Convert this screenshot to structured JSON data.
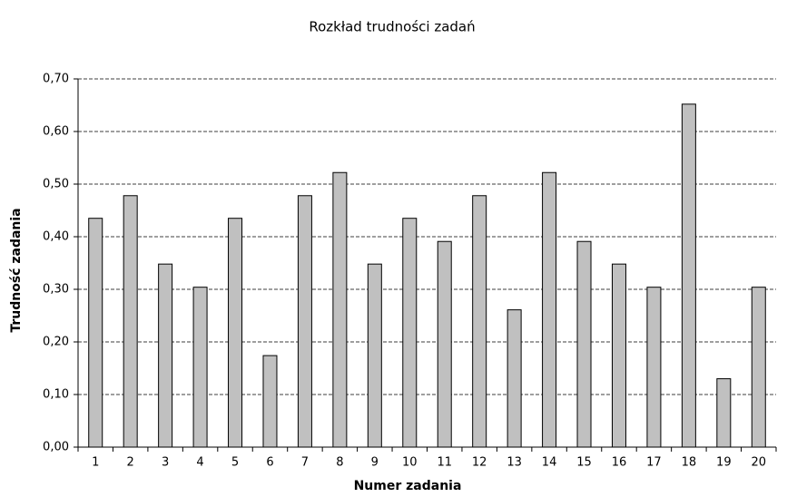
{
  "chart_data": {
    "type": "bar",
    "title": "Rozkład trudności zadań",
    "x_label": "Numer zadania",
    "y_label": "Trudność zadania",
    "categories": [
      "1",
      "2",
      "3",
      "4",
      "5",
      "6",
      "7",
      "8",
      "9",
      "10",
      "11",
      "12",
      "13",
      "14",
      "15",
      "16",
      "17",
      "18",
      "19",
      "20"
    ],
    "values": [
      0.435,
      0.478,
      0.348,
      0.304,
      0.435,
      0.174,
      0.478,
      0.522,
      0.348,
      0.435,
      0.391,
      0.478,
      0.261,
      0.522,
      0.391,
      0.348,
      0.304,
      0.652,
      0.13,
      0.304
    ],
    "color": "#c0c0c0",
    "ylim": [
      0,
      0.7
    ],
    "yticks": [
      {
        "value": 0,
        "label": "0,00"
      },
      {
        "value": 0.1,
        "label": "0,10"
      },
      {
        "value": 0.2,
        "label": "0,20"
      },
      {
        "value": 0.3,
        "label": "0,30"
      },
      {
        "value": 0.4,
        "label": "0,40"
      },
      {
        "value": 0.5,
        "label": "0,50"
      },
      {
        "value": 0.6,
        "label": "0,60"
      },
      {
        "value": 0.7,
        "label": "0,70"
      }
    ],
    "grid": true
  }
}
